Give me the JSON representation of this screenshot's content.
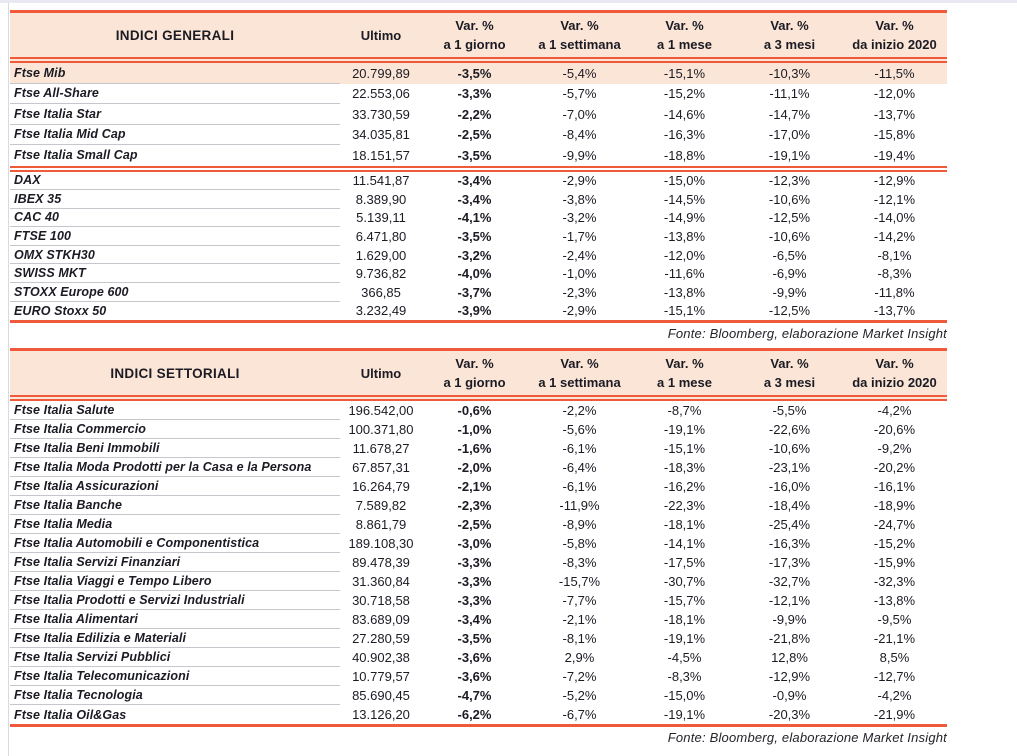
{
  "page": {
    "accent_orange": "#EF5B3A",
    "header_fill": "#FBE5D6",
    "highlight_fill": "#FBE5D6",
    "text_color": "#1B1B24",
    "row_separator_gray": "#C6C6CC"
  },
  "column_headers": {
    "ultimo": "Ultimo",
    "var_columns": [
      {
        "line1": "Var. %",
        "line2": "a 1 giorno"
      },
      {
        "line1": "Var. %",
        "line2": "a 1 settimana"
      },
      {
        "line1": "Var. %",
        "line2": "a 1 mese"
      },
      {
        "line1": "Var. %",
        "line2": "a 3 mesi"
      },
      {
        "line1": "Var. %",
        "line2": "da inizio 2020"
      }
    ]
  },
  "tables": [
    {
      "title": "INDICI GENERALI",
      "source": "Fonte: Bloomberg, elaborazione Market Insight",
      "groups": [
        {
          "rows": [
            {
              "name": "Ftse Mib",
              "ultimo": "20.799,89",
              "var_1d": "-3,5%",
              "var_1w": "-5,4%",
              "var_1m": "-15,1%",
              "var_3m": "-10,3%",
              "var_ytd": "-11,5%",
              "highlight": true
            },
            {
              "name": "Ftse All-Share",
              "ultimo": "22.553,06",
              "var_1d": "-3,3%",
              "var_1w": "-5,7%",
              "var_1m": "-15,2%",
              "var_3m": "-11,1%",
              "var_ytd": "-12,0%"
            },
            {
              "name": "Ftse Italia Star",
              "ultimo": "33.730,59",
              "var_1d": "-2,2%",
              "var_1w": "-7,0%",
              "var_1m": "-14,6%",
              "var_3m": "-14,7%",
              "var_ytd": "-13,7%"
            },
            {
              "name": "Ftse Italia Mid Cap",
              "ultimo": "34.035,81",
              "var_1d": "-2,5%",
              "var_1w": "-8,4%",
              "var_1m": "-16,3%",
              "var_3m": "-17,0%",
              "var_ytd": "-15,8%"
            },
            {
              "name": "Ftse Italia Small Cap",
              "ultimo": "18.151,57",
              "var_1d": "-3,5%",
              "var_1w": "-9,9%",
              "var_1m": "-18,8%",
              "var_3m": "-19,1%",
              "var_ytd": "-19,4%"
            }
          ]
        },
        {
          "rows": [
            {
              "name": "DAX",
              "ultimo": "11.541,87",
              "var_1d": "-3,4%",
              "var_1w": "-2,9%",
              "var_1m": "-15,0%",
              "var_3m": "-12,3%",
              "var_ytd": "-12,9%"
            },
            {
              "name": "IBEX 35",
              "ultimo": "8.389,90",
              "var_1d": "-3,4%",
              "var_1w": "-3,8%",
              "var_1m": "-14,5%",
              "var_3m": "-10,6%",
              "var_ytd": "-12,1%"
            },
            {
              "name": "CAC 40",
              "ultimo": "5.139,11",
              "var_1d": "-4,1%",
              "var_1w": "-3,2%",
              "var_1m": "-14,9%",
              "var_3m": "-12,5%",
              "var_ytd": "-14,0%"
            },
            {
              "name": "FTSE 100",
              "ultimo": "6.471,80",
              "var_1d": "-3,5%",
              "var_1w": "-1,7%",
              "var_1m": "-13,8%",
              "var_3m": "-10,6%",
              "var_ytd": "-14,2%"
            },
            {
              "name": "OMX STKH30",
              "ultimo": "1.629,00",
              "var_1d": "-3,2%",
              "var_1w": "-2,4%",
              "var_1m": "-12,0%",
              "var_3m": "-6,5%",
              "var_ytd": "-8,1%"
            },
            {
              "name": "SWISS MKT",
              "ultimo": "9.736,82",
              "var_1d": "-4,0%",
              "var_1w": "-1,0%",
              "var_1m": "-11,6%",
              "var_3m": "-6,9%",
              "var_ytd": "-8,3%"
            },
            {
              "name": "STOXX Europe 600",
              "ultimo": "366,85",
              "var_1d": "-3,7%",
              "var_1w": "-2,3%",
              "var_1m": "-13,8%",
              "var_3m": "-9,9%",
              "var_ytd": "-11,8%"
            },
            {
              "name": "EURO Stoxx 50",
              "ultimo": "3.232,49",
              "var_1d": "-3,9%",
              "var_1w": "-2,9%",
              "var_1m": "-15,1%",
              "var_3m": "-12,5%",
              "var_ytd": "-13,7%"
            }
          ]
        }
      ]
    },
    {
      "title": "INDICI SETTORIALI",
      "source": "Fonte: Bloomberg, elaborazione Market Insight",
      "groups": [
        {
          "rows": [
            {
              "name": "Ftse Italia Salute",
              "ultimo": "196.542,00",
              "var_1d": "-0,6%",
              "var_1w": "-2,2%",
              "var_1m": "-8,7%",
              "var_3m": "-5,5%",
              "var_ytd": "-4,2%"
            },
            {
              "name": "Ftse Italia Commercio",
              "ultimo": "100.371,80",
              "var_1d": "-1,0%",
              "var_1w": "-5,6%",
              "var_1m": "-19,1%",
              "var_3m": "-22,6%",
              "var_ytd": "-20,6%"
            },
            {
              "name": "Ftse Italia Beni Immobili",
              "ultimo": "11.678,27",
              "var_1d": "-1,6%",
              "var_1w": "-6,1%",
              "var_1m": "-15,1%",
              "var_3m": "-10,6%",
              "var_ytd": "-9,2%"
            },
            {
              "name": "Ftse Italia Moda Prodotti per la Casa e la Persona",
              "ultimo": "67.857,31",
              "var_1d": "-2,0%",
              "var_1w": "-6,4%",
              "var_1m": "-18,3%",
              "var_3m": "-23,1%",
              "var_ytd": "-20,2%"
            },
            {
              "name": "Ftse Italia Assicurazioni",
              "ultimo": "16.264,79",
              "var_1d": "-2,1%",
              "var_1w": "-6,1%",
              "var_1m": "-16,2%",
              "var_3m": "-16,0%",
              "var_ytd": "-16,1%"
            },
            {
              "name": "Ftse Italia Banche",
              "ultimo": "7.589,82",
              "var_1d": "-2,3%",
              "var_1w": "-11,9%",
              "var_1m": "-22,3%",
              "var_3m": "-18,4%",
              "var_ytd": "-18,9%"
            },
            {
              "name": "Ftse Italia Media",
              "ultimo": "8.861,79",
              "var_1d": "-2,5%",
              "var_1w": "-8,9%",
              "var_1m": "-18,1%",
              "var_3m": "-25,4%",
              "var_ytd": "-24,7%"
            },
            {
              "name": "Ftse Italia Automobili e Componentistica",
              "ultimo": "189.108,30",
              "var_1d": "-3,0%",
              "var_1w": "-5,8%",
              "var_1m": "-14,1%",
              "var_3m": "-16,3%",
              "var_ytd": "-15,2%"
            },
            {
              "name": "Ftse Italia Servizi Finanziari",
              "ultimo": "89.478,39",
              "var_1d": "-3,3%",
              "var_1w": "-8,3%",
              "var_1m": "-17,5%",
              "var_3m": "-17,3%",
              "var_ytd": "-15,9%"
            },
            {
              "name": "Ftse Italia Viaggi e Tempo Libero",
              "ultimo": "31.360,84",
              "var_1d": "-3,3%",
              "var_1w": "-15,7%",
              "var_1m": "-30,7%",
              "var_3m": "-32,7%",
              "var_ytd": "-32,3%"
            },
            {
              "name": "Ftse Italia Prodotti e Servizi Industriali",
              "ultimo": "30.718,58",
              "var_1d": "-3,3%",
              "var_1w": "-7,7%",
              "var_1m": "-15,7%",
              "var_3m": "-12,1%",
              "var_ytd": "-13,8%"
            },
            {
              "name": "Ftse Italia Alimentari",
              "ultimo": "83.689,09",
              "var_1d": "-3,4%",
              "var_1w": "-2,1%",
              "var_1m": "-18,1%",
              "var_3m": "-9,9%",
              "var_ytd": "-9,5%"
            },
            {
              "name": "Ftse Italia Edilizia e Materiali",
              "ultimo": "27.280,59",
              "var_1d": "-3,5%",
              "var_1w": "-8,1%",
              "var_1m": "-19,1%",
              "var_3m": "-21,8%",
              "var_ytd": "-21,1%"
            },
            {
              "name": "Ftse Italia Servizi Pubblici",
              "ultimo": "40.902,38",
              "var_1d": "-3,6%",
              "var_1w": "2,9%",
              "var_1m": "-4,5%",
              "var_3m": "12,8%",
              "var_ytd": "8,5%"
            },
            {
              "name": "Ftse Italia Telecomunicazioni",
              "ultimo": "10.779,57",
              "var_1d": "-3,6%",
              "var_1w": "-7,2%",
              "var_1m": "-8,3%",
              "var_3m": "-12,9%",
              "var_ytd": "-12,7%"
            },
            {
              "name": "Ftse Italia Tecnologia",
              "ultimo": "85.690,45",
              "var_1d": "-4,7%",
              "var_1w": "-5,2%",
              "var_1m": "-15,0%",
              "var_3m": "-0,9%",
              "var_ytd": "-4,2%"
            },
            {
              "name": "Ftse Italia Oil&Gas",
              "ultimo": "13.126,20",
              "var_1d": "-6,2%",
              "var_1w": "-6,7%",
              "var_1m": "-19,1%",
              "var_3m": "-20,3%",
              "var_ytd": "-21,9%"
            }
          ]
        }
      ]
    }
  ]
}
